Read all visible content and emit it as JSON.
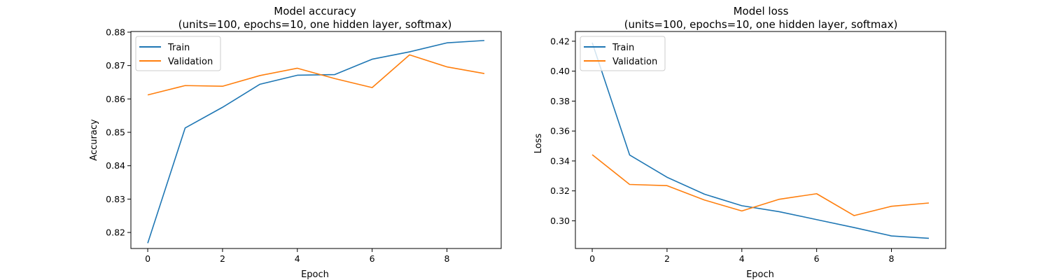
{
  "colors": {
    "train": "#1f77b4",
    "validation": "#ff7f0e"
  },
  "chart_data": [
    {
      "type": "line",
      "title": "Model accuracy",
      "subtitle": "(units=100, epochs=10, one hidden layer, softmax)",
      "xlabel": "Epoch",
      "ylabel": "Accuracy",
      "x": [
        0,
        1,
        2,
        3,
        4,
        5,
        6,
        7,
        8,
        9
      ],
      "xlim": [
        -0.45,
        9.45
      ],
      "ylim": [
        0.8152,
        0.8802
      ],
      "xticks": [
        0,
        2,
        4,
        6,
        8
      ],
      "yticks": [
        0.82,
        0.83,
        0.84,
        0.85,
        0.86,
        0.87,
        0.88
      ],
      "ytick_labels": [
        "0.82",
        "0.83",
        "0.84",
        "0.85",
        "0.86",
        "0.87",
        "0.88"
      ],
      "legend_position": "upper-left",
      "grid": false,
      "series": [
        {
          "name": "Train",
          "values": [
            0.8168,
            0.8513,
            0.8575,
            0.8644,
            0.8671,
            0.8673,
            0.8719,
            0.8741,
            0.8768,
            0.8775
          ]
        },
        {
          "name": "Validation",
          "values": [
            0.8612,
            0.864,
            0.8638,
            0.867,
            0.8692,
            0.8661,
            0.8634,
            0.8732,
            0.8696,
            0.8676
          ]
        }
      ]
    },
    {
      "type": "line",
      "title": "Model loss",
      "subtitle": "(units=100, epochs=10, one hidden layer, softmax)",
      "xlabel": "Epoch",
      "ylabel": "Loss",
      "x": [
        0,
        1,
        2,
        3,
        4,
        5,
        6,
        7,
        8,
        9
      ],
      "xlim": [
        -0.45,
        9.45
      ],
      "ylim": [
        0.2815,
        0.4265
      ],
      "xticks": [
        0,
        2,
        4,
        6,
        8
      ],
      "yticks": [
        0.3,
        0.32,
        0.34,
        0.36,
        0.38,
        0.4,
        0.42
      ],
      "ytick_labels": [
        "0.30",
        "0.32",
        "0.34",
        "0.36",
        "0.38",
        "0.40",
        "0.42"
      ],
      "legend_position": "upper-left",
      "grid": false,
      "series": [
        {
          "name": "Train",
          "values": [
            0.419,
            0.344,
            0.3291,
            0.3178,
            0.3101,
            0.3061,
            0.3008,
            0.2955,
            0.2899,
            0.2883
          ]
        },
        {
          "name": "Validation",
          "values": [
            0.3442,
            0.3243,
            0.3235,
            0.3139,
            0.3066,
            0.3144,
            0.3181,
            0.3035,
            0.3097,
            0.3119
          ]
        }
      ]
    }
  ]
}
